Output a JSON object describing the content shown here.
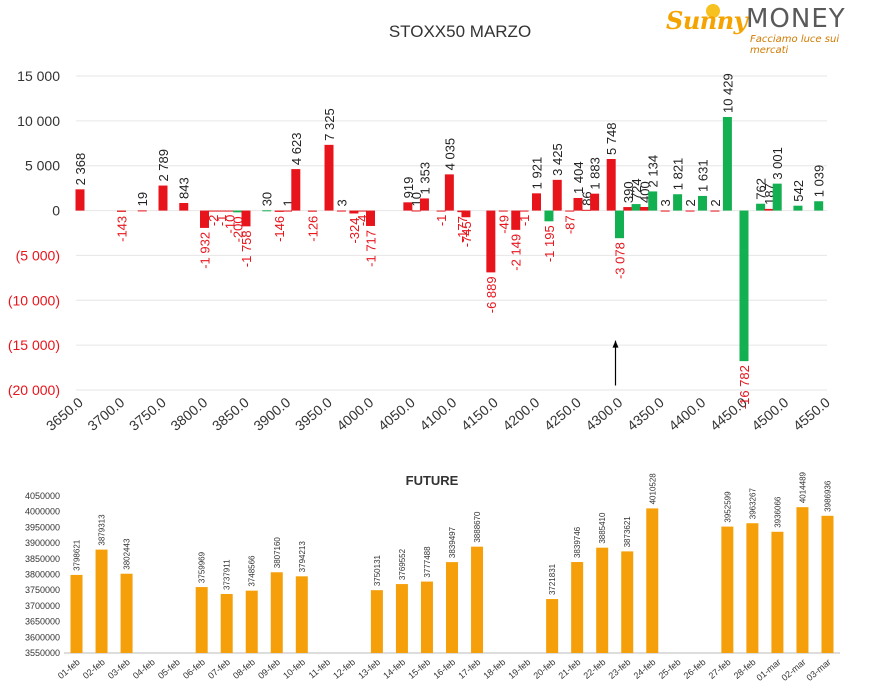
{
  "logo": {
    "brand_first": "Sunny",
    "brand_second": "MONEY",
    "tagline": "Facciamo luce sui mercati",
    "color_orange": "#f5a300",
    "color_gray": "#5a5a5a"
  },
  "chart_data": [
    {
      "type": "bar",
      "title": "STOXX50 MARZO",
      "colors": {
        "red": "#e8141c",
        "green": "#12b050",
        "label_red": "#e8141c",
        "label_black": "#222222"
      },
      "ylim": [
        -20000,
        15000
      ],
      "yticks": [
        15000,
        10000,
        5000,
        0,
        -5000,
        -10000,
        -15000,
        -20000
      ],
      "ytick_labels": [
        "15 000",
        "10 000",
        "5 000",
        "0",
        "(5 000)",
        "(10 000)",
        "(15 000)",
        "(20 000)"
      ],
      "x_strikes": [
        3650,
        3700,
        3750,
        3800,
        3850,
        3900,
        3950,
        4000,
        4050,
        4100,
        4150,
        4200,
        4250,
        4300,
        4350,
        4400,
        4450,
        4500,
        4550
      ],
      "x_labels": [
        "3650.0",
        "3700.0",
        "3750.0",
        "3800.0",
        "3850.0",
        "3900.0",
        "3950.0",
        "4000.0",
        "4050.0",
        "4100.0",
        "4150.0",
        "4200.0",
        "4250.0",
        "4300.0",
        "4350.0",
        "4400.0",
        "4450.0",
        "4500.0",
        "4550.0"
      ],
      "series": [
        {
          "color": "red",
          "points": [
            {
              "x": 3650,
              "v": 2368,
              "label": "2 368"
            },
            {
              "x": 3700,
              "v": -143,
              "label": "-143"
            },
            {
              "x": 3725,
              "v": 19,
              "label": "19"
            },
            {
              "x": 3750,
              "v": 2789,
              "label": "2 789"
            },
            {
              "x": 3775,
              "v": 843,
              "label": "843"
            },
            {
              "x": 3800,
              "v": -1932,
              "label": "-1 932"
            },
            {
              "x": 3810,
              "v": -2,
              "label": "-2"
            },
            {
              "x": 3820,
              "v": -1,
              "label": "-1"
            },
            {
              "x": 3830,
              "v": -10,
              "label": "-10"
            },
            {
              "x": 3840,
              "v": -200,
              "label": "-200"
            },
            {
              "x": 3850,
              "v": -1758,
              "label": "-1 758"
            },
            {
              "x": 3875,
              "v": 30,
              "label": "30"
            },
            {
              "x": 3890,
              "v": -146,
              "label": "-146"
            },
            {
              "x": 3900,
              "v": 1,
              "label": "1"
            },
            {
              "x": 3910,
              "v": 4623,
              "label": "4 623"
            },
            {
              "x": 3930,
              "v": -126,
              "label": "-126"
            },
            {
              "x": 3950,
              "v": 7325,
              "label": "7 325"
            },
            {
              "x": 3965,
              "v": 3,
              "label": "3"
            },
            {
              "x": 3980,
              "v": -324,
              "label": "-324"
            },
            {
              "x": 3990,
              "v": -4,
              "label": "-4"
            },
            {
              "x": 4000,
              "v": -1717,
              "label": "-1 717"
            },
            {
              "x": 4045,
              "v": 919,
              "label": "919"
            },
            {
              "x": 4055,
              "v": 10,
              "label": "10"
            },
            {
              "x": 4065,
              "v": 1353,
              "label": "1 353"
            },
            {
              "x": 4085,
              "v": -1,
              "label": "-1"
            },
            {
              "x": 4095,
              "v": 4035,
              "label": "4 035"
            },
            {
              "x": 4110,
              "v": -177,
              "label": "-177"
            },
            {
              "x": 4115,
              "v": -745,
              "label": "-745"
            },
            {
              "x": 4145,
              "v": -6889,
              "label": "-6 889"
            },
            {
              "x": 4160,
              "v": -49,
              "label": "-49"
            },
            {
              "x": 4175,
              "v": -2149,
              "label": "-2 149"
            },
            {
              "x": 4185,
              "v": -1,
              "label": "-1"
            },
            {
              "x": 4200,
              "v": 1921,
              "label": "1 921"
            },
            {
              "x": 4215,
              "v": -1195,
              "label": "-1 195"
            },
            {
              "x": 4225,
              "v": 3425,
              "label": "3 425"
            },
            {
              "x": 4240,
              "v": -87,
              "label": "-87"
            },
            {
              "x": 4250,
              "v": 1404,
              "label": "1 404"
            },
            {
              "x": 4260,
              "v": 86,
              "label": "86"
            },
            {
              "x": 4270,
              "v": 1883,
              "label": "1 883"
            },
            {
              "x": 4290,
              "v": 5748,
              "label": "5 748"
            },
            {
              "x": 4300,
              "v": -3078,
              "label": "-3 078"
            },
            {
              "x": 4310,
              "v": 390,
              "label": "390"
            },
            {
              "x": 4320,
              "v": 724,
              "label": "724"
            },
            {
              "x": 4330,
              "v": 400,
              "label": "400"
            },
            {
              "x": 4340,
              "v": 2134,
              "label": "2 134"
            },
            {
              "x": 4355,
              "v": 3,
              "label": "3"
            },
            {
              "x": 4370,
              "v": 1821,
              "label": "1 821"
            },
            {
              "x": 4385,
              "v": 2,
              "label": "2"
            },
            {
              "x": 4400,
              "v": 1631,
              "label": "1 631"
            },
            {
              "x": 4415,
              "v": 2,
              "label": "2"
            },
            {
              "x": 4430,
              "v": 10429,
              "label": "10 429"
            },
            {
              "x": 4450,
              "v": -16782,
              "label": "-16 782"
            },
            {
              "x": 4470,
              "v": 762,
              "label": "762"
            },
            {
              "x": 4480,
              "v": 187,
              "label": "187"
            },
            {
              "x": 4490,
              "v": 3001,
              "label": "3 001"
            },
            {
              "x": 4515,
              "v": 542,
              "label": "542"
            },
            {
              "x": 4540,
              "v": 1039,
              "label": "1 039"
            }
          ]
        }
      ],
      "bar_colors_by_x": {
        "3650": "red",
        "3700": "red",
        "3725": "red",
        "3750": "red",
        "3775": "red",
        "3800": "red",
        "3810": "red",
        "3820": "red",
        "3830": "red",
        "3840": "green",
        "3850": "red",
        "3875": "green",
        "3890": "red",
        "3900": "red",
        "3910": "red",
        "3930": "red",
        "3950": "red",
        "3965": "red",
        "3980": "red",
        "3990": "red",
        "4000": "red",
        "4045": "red",
        "4055": "red",
        "4065": "red",
        "4085": "red",
        "4095": "red",
        "4110": "red",
        "4115": "red",
        "4145": "red",
        "4160": "red",
        "4175": "red",
        "4185": "red",
        "4200": "red",
        "4215": "green",
        "4225": "red",
        "4240": "red",
        "4250": "red",
        "4260": "red",
        "4270": "red",
        "4290": "red",
        "4300": "green",
        "4310": "red",
        "4320": "green",
        "4330": "red",
        "4340": "green",
        "4355": "red",
        "4370": "green",
        "4385": "red",
        "4400": "green",
        "4415": "red",
        "4430": "green",
        "4450": "green",
        "4470": "green",
        "4480": "red",
        "4490": "green",
        "4515": "green",
        "4540": "green"
      },
      "annotation": {
        "type": "arrow-up",
        "x": 4300,
        "from": -19500,
        "to": -14500
      }
    },
    {
      "type": "bar",
      "title": "FUTURE",
      "color": "#f5a00a",
      "ylim": [
        3550000,
        4050000
      ],
      "yticks": [
        3550000,
        3600000,
        3650000,
        3700000,
        3750000,
        3800000,
        3850000,
        3900000,
        3950000,
        4000000,
        4050000
      ],
      "ytick_labels": [
        "3550000",
        "3600000",
        "3650000",
        "3700000",
        "3750000",
        "3800000",
        "3850000",
        "3900000",
        "3950000",
        "4000000",
        "4050000"
      ],
      "categories": [
        "01-feb",
        "02-feb",
        "03-feb",
        "04-feb",
        "05-feb",
        "06-feb",
        "07-feb",
        "08-feb",
        "09-feb",
        "10-feb",
        "11-feb",
        "12-feb",
        "13-feb",
        "14-feb",
        "15-feb",
        "16-feb",
        "17-feb",
        "18-feb",
        "19-feb",
        "20-feb",
        "21-feb",
        "22-feb",
        "23-feb",
        "24-feb",
        "25-feb",
        "26-feb",
        "27-feb",
        "28-feb",
        "01-mar",
        "02-mar",
        "03-mar"
      ],
      "values": [
        3798621,
        3879313,
        3802443,
        null,
        null,
        3759969,
        3737911,
        3748566,
        3807160,
        3794213,
        null,
        null,
        3750131,
        3769552,
        3777488,
        3839497,
        3888670,
        null,
        null,
        3721831,
        3839746,
        3885410,
        3873621,
        4010528,
        null,
        null,
        3952599,
        3963267,
        3936066,
        4014489,
        3986936
      ],
      "labels": [
        "3798621",
        "3879313",
        "3802443",
        "",
        "",
        "3759969",
        "3737911",
        "3748566",
        "3807160",
        "3794213",
        "",
        "",
        "3750131",
        "3769552",
        "3777488",
        "3839497",
        "3888670",
        "",
        "",
        "3721831",
        "3839746",
        "3885410",
        "3873621",
        "4010528",
        "",
        "",
        "3952599",
        "3963267",
        "3936066",
        "4014489",
        "3986936"
      ]
    }
  ]
}
